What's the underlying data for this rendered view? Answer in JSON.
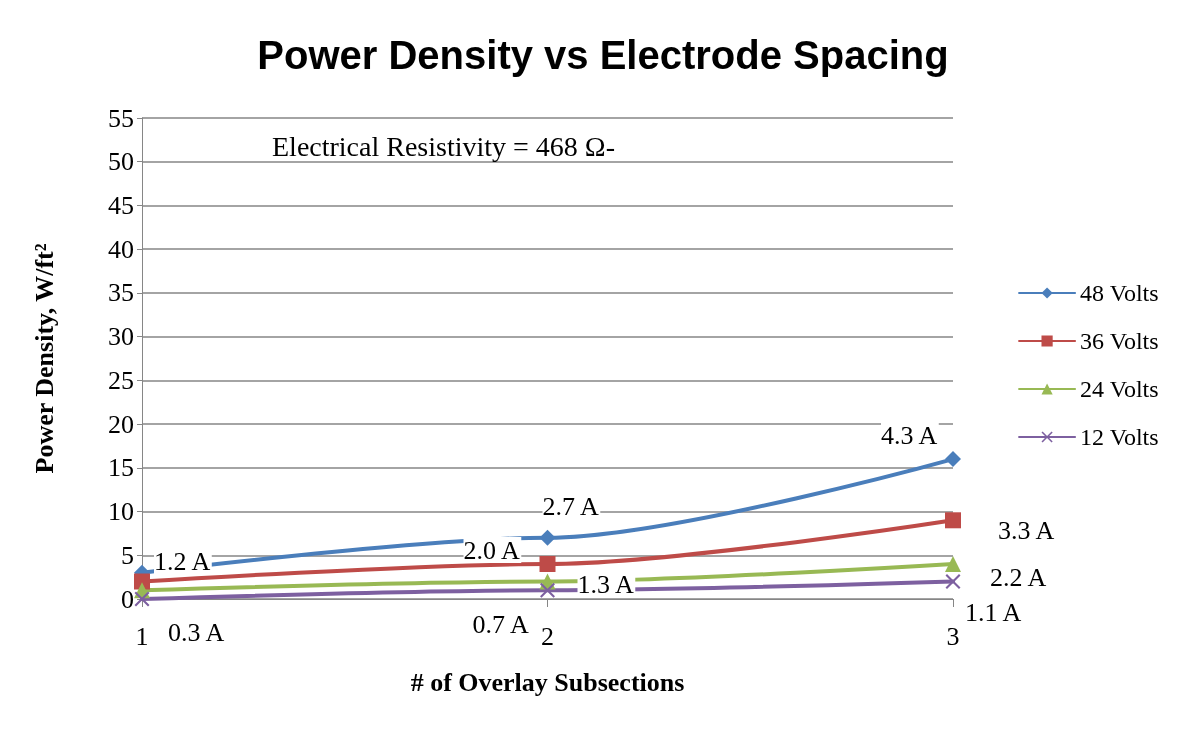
{
  "chart_data": {
    "type": "line",
    "title": "Power Density vs Electrode Spacing",
    "xlabel": "# of Overlay Subsections",
    "ylabel": "Power Density, W/ft²",
    "categories": [
      "1",
      "2",
      "3"
    ],
    "series": [
      {
        "name": "48 Volts",
        "color": "#4a7ebb",
        "marker": "diamond",
        "values": [
          3,
          7,
          16
        ]
      },
      {
        "name": "36 Volts",
        "color": "#be4b48",
        "marker": "square",
        "values": [
          2,
          4,
          9
        ]
      },
      {
        "name": "24 Volts",
        "color": "#98b954",
        "marker": "triangle",
        "values": [
          1,
          2,
          4
        ]
      },
      {
        "name": "12 Volts",
        "color": "#7d60a0",
        "marker": "cross",
        "values": [
          0,
          1,
          2
        ]
      }
    ],
    "ylim": [
      0,
      55
    ],
    "yticks": [
      0,
      5,
      10,
      15,
      20,
      25,
      30,
      35,
      40,
      45,
      50,
      55
    ],
    "grid": "y",
    "legend": "right",
    "line_style": "solid",
    "annotations": [
      "Electrical Resistivity = 468 Ω-",
      {
        "text": "1.2 A",
        "x": "1",
        "y": 3
      },
      {
        "text": "2.7 A",
        "x": "2",
        "y": 7
      },
      {
        "text": "4.3 A",
        "x": "3",
        "y": 16
      },
      {
        "text": "2.0 A",
        "x": "2",
        "y": 4
      },
      {
        "text": "3.3 A",
        "x": "3",
        "y": 9
      },
      {
        "text": "1.3 A",
        "x": "2",
        "y": 2
      },
      {
        "text": "2.2 A",
        "x": "3",
        "y": 4
      },
      {
        "text": "0.3 A",
        "x": "1",
        "y": 0
      },
      {
        "text": "0.7 A",
        "x": "2",
        "y": 1
      },
      {
        "text": "1.1 A",
        "x": "3",
        "y": 2
      }
    ]
  }
}
